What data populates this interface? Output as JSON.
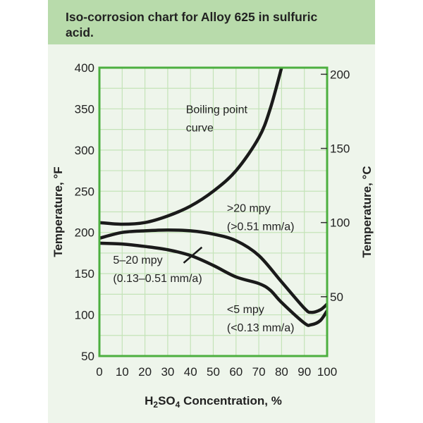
{
  "chart_data": {
    "type": "line",
    "title": "Iso-corrosion chart for Alloy 625 in sulfuric acid.",
    "xlabel": "H2SO4 Concentration, %",
    "ylabel": "Temperature, °F",
    "y2label": "Temperature, °C",
    "xlim": [
      0,
      100
    ],
    "ylim": [
      50,
      400
    ],
    "xticks": [
      0,
      10,
      20,
      30,
      40,
      50,
      60,
      70,
      80,
      90,
      100
    ],
    "yticks": [
      50,
      100,
      150,
      200,
      250,
      300,
      350,
      400
    ],
    "y2ticks": [
      50,
      100,
      150,
      200
    ],
    "grid": true,
    "colors": {
      "curve": "#1a1a1a",
      "frame": "#4caf3f",
      "grid": "#c4e3b8",
      "banner": "#b8dbab",
      "panel": "#eef5eb"
    },
    "series": [
      {
        "name": "Boiling point curve",
        "x": [
          0,
          10,
          20,
          30,
          40,
          50,
          60,
          70,
          75,
          80
        ],
        "y": [
          212,
          210,
          212,
          220,
          232,
          250,
          275,
          315,
          350,
          400
        ]
      },
      {
        "x": [
          0,
          10,
          20,
          30,
          40,
          50,
          60,
          70,
          80,
          90,
          93,
          97,
          100
        ],
        "y": [
          193,
          200,
          202,
          203,
          202,
          198,
          190,
          172,
          140,
          108,
          103,
          106,
          113
        ]
      },
      {
        "x": [
          0,
          10,
          20,
          30,
          40,
          50,
          60,
          70,
          75,
          80,
          90,
          93,
          97,
          100
        ],
        "y": [
          187,
          186,
          183,
          179,
          172,
          160,
          146,
          138,
          130,
          115,
          90,
          88,
          93,
          105
        ]
      }
    ],
    "annotations": [
      {
        "lines": [
          "Boiling point",
          "curve"
        ],
        "x": 38,
        "y": 345
      },
      {
        "lines": [
          ">20 mpy",
          "(>0.51 mm/a)"
        ],
        "x": 56,
        "y": 225
      },
      {
        "lines": [
          "5–20 mpy",
          "(0.13–0.51 mm/a)"
        ],
        "x": 6,
        "y": 162
      },
      {
        "lines": [
          "<5 mpy",
          "(<0.13 mm/a)"
        ],
        "x": 56,
        "y": 102
      }
    ]
  }
}
